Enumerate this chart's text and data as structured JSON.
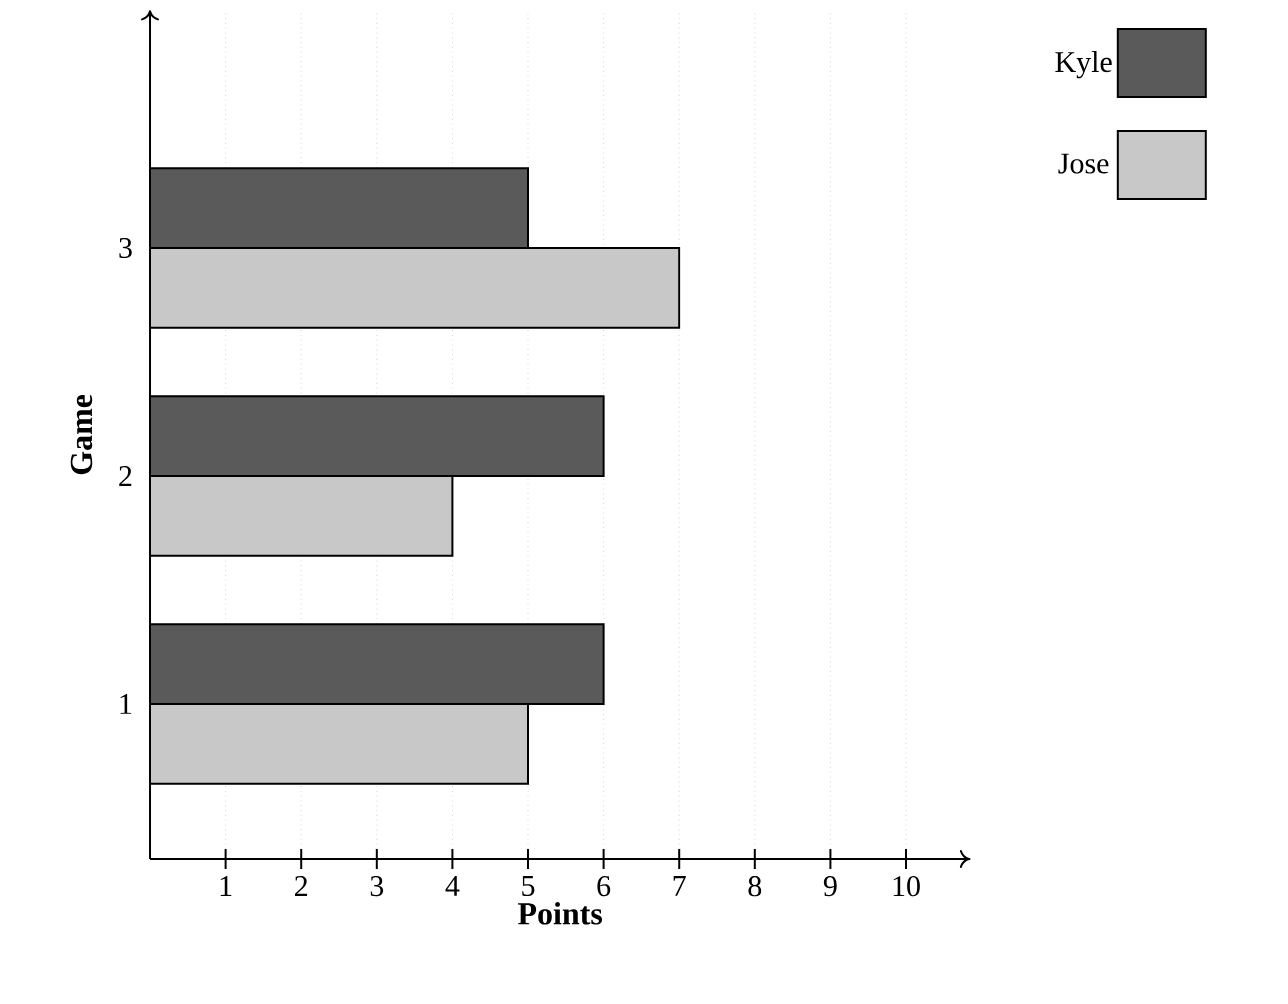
{
  "chart_data": {
    "type": "bar",
    "orientation": "horizontal",
    "xlabel": "Points",
    "ylabel": "Game",
    "categories": [
      "3",
      "2",
      "1"
    ],
    "series": [
      {
        "name": "Kyle",
        "color": "#5a5a5a",
        "values": [
          5,
          6,
          6
        ]
      },
      {
        "name": "Jose",
        "color": "#c8c8c8",
        "values": [
          7,
          4,
          5
        ]
      }
    ],
    "xlim": [
      0,
      10.85
    ],
    "xticks": [
      1,
      2,
      3,
      4,
      5,
      6,
      7,
      8,
      9,
      10
    ],
    "grid": "x",
    "legend": "top right"
  }
}
